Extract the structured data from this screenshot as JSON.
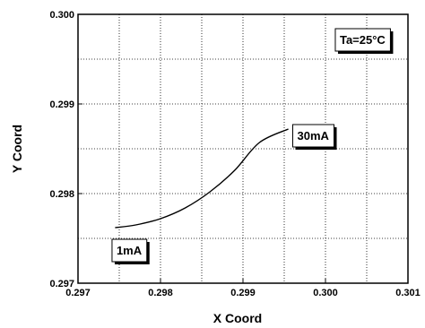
{
  "chart_data": {
    "type": "line",
    "title": "",
    "xlabel": "X Coord",
    "ylabel": "Y Coord",
    "xlim": [
      0.297,
      0.301
    ],
    "ylim": [
      0.297,
      0.3
    ],
    "x_ticks": [
      "0.297",
      "0.298",
      "0.299",
      "0.300",
      "0.301"
    ],
    "y_ticks": [
      "0.297",
      "0.298",
      "0.299",
      "0.300"
    ],
    "x_tick_values": [
      0.297,
      0.298,
      0.299,
      0.3,
      0.301
    ],
    "y_tick_values": [
      0.297,
      0.298,
      0.299,
      0.3
    ],
    "grid": true,
    "grid_style": "dotted, major and minor",
    "series": [
      {
        "x": [
          0.29745,
          0.2977,
          0.298,
          0.2983,
          0.2986,
          0.2989,
          0.2992,
          0.29955
        ],
        "y": [
          0.29762,
          0.29765,
          0.29772,
          0.29784,
          0.29802,
          0.29826,
          0.29857,
          0.29872
        ],
        "color": "#000000"
      }
    ],
    "annotations": [
      {
        "text": "Ta=25°C",
        "x": 0.30045,
        "y": 0.29972
      },
      {
        "text": "30mA",
        "x": 0.29985,
        "y": 0.29865
      },
      {
        "text": "1mA",
        "x": 0.29762,
        "y": 0.29737
      }
    ]
  }
}
